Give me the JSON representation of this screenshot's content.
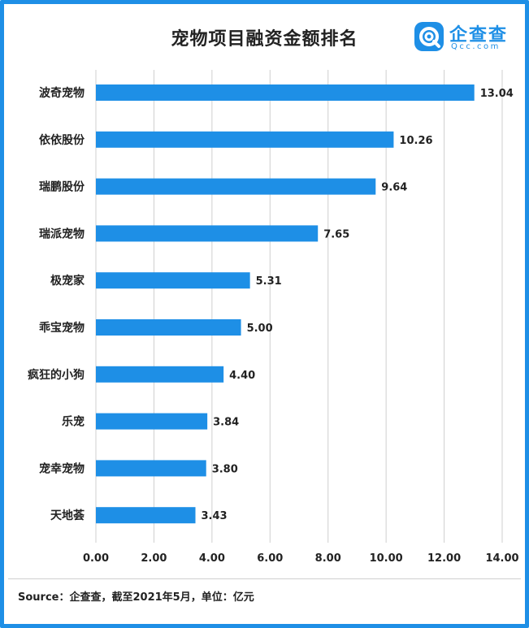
{
  "title": "宠物项目融资金额排名",
  "brand": {
    "name": "企查查",
    "domain": "Qcc.com",
    "color": "#1e8fe6"
  },
  "source": "Source：企查查，截至2021年5月，单位：亿元",
  "colors": {
    "bar": "#1e8fe6",
    "frame": "#1e8fe6",
    "grid": "#cfcfcf",
    "text": "#222222"
  },
  "chart_data": {
    "type": "bar",
    "orientation": "horizontal",
    "title": "宠物项目融资金额排名",
    "unit": "亿元",
    "categories": [
      "波奇宠物",
      "依依股份",
      "瑞鹏股份",
      "瑞派宠物",
      "极宠家",
      "乖宝宠物",
      "疯狂的小狗",
      "乐宠",
      "宠幸宠物",
      "天地荟"
    ],
    "values": [
      13.04,
      10.26,
      9.64,
      7.65,
      5.31,
      5.0,
      4.4,
      3.84,
      3.8,
      3.43
    ],
    "value_labels": [
      "13.04",
      "10.26",
      "9.64",
      "7.65",
      "5.31",
      "5.00",
      "4.40",
      "3.84",
      "3.80",
      "3.43"
    ],
    "x_ticks": [
      "0.00",
      "2.00",
      "4.00",
      "6.00",
      "8.00",
      "10.00",
      "12.00",
      "14.00"
    ],
    "xlim": [
      0,
      14
    ],
    "grid": "vertical",
    "legend": "none"
  }
}
